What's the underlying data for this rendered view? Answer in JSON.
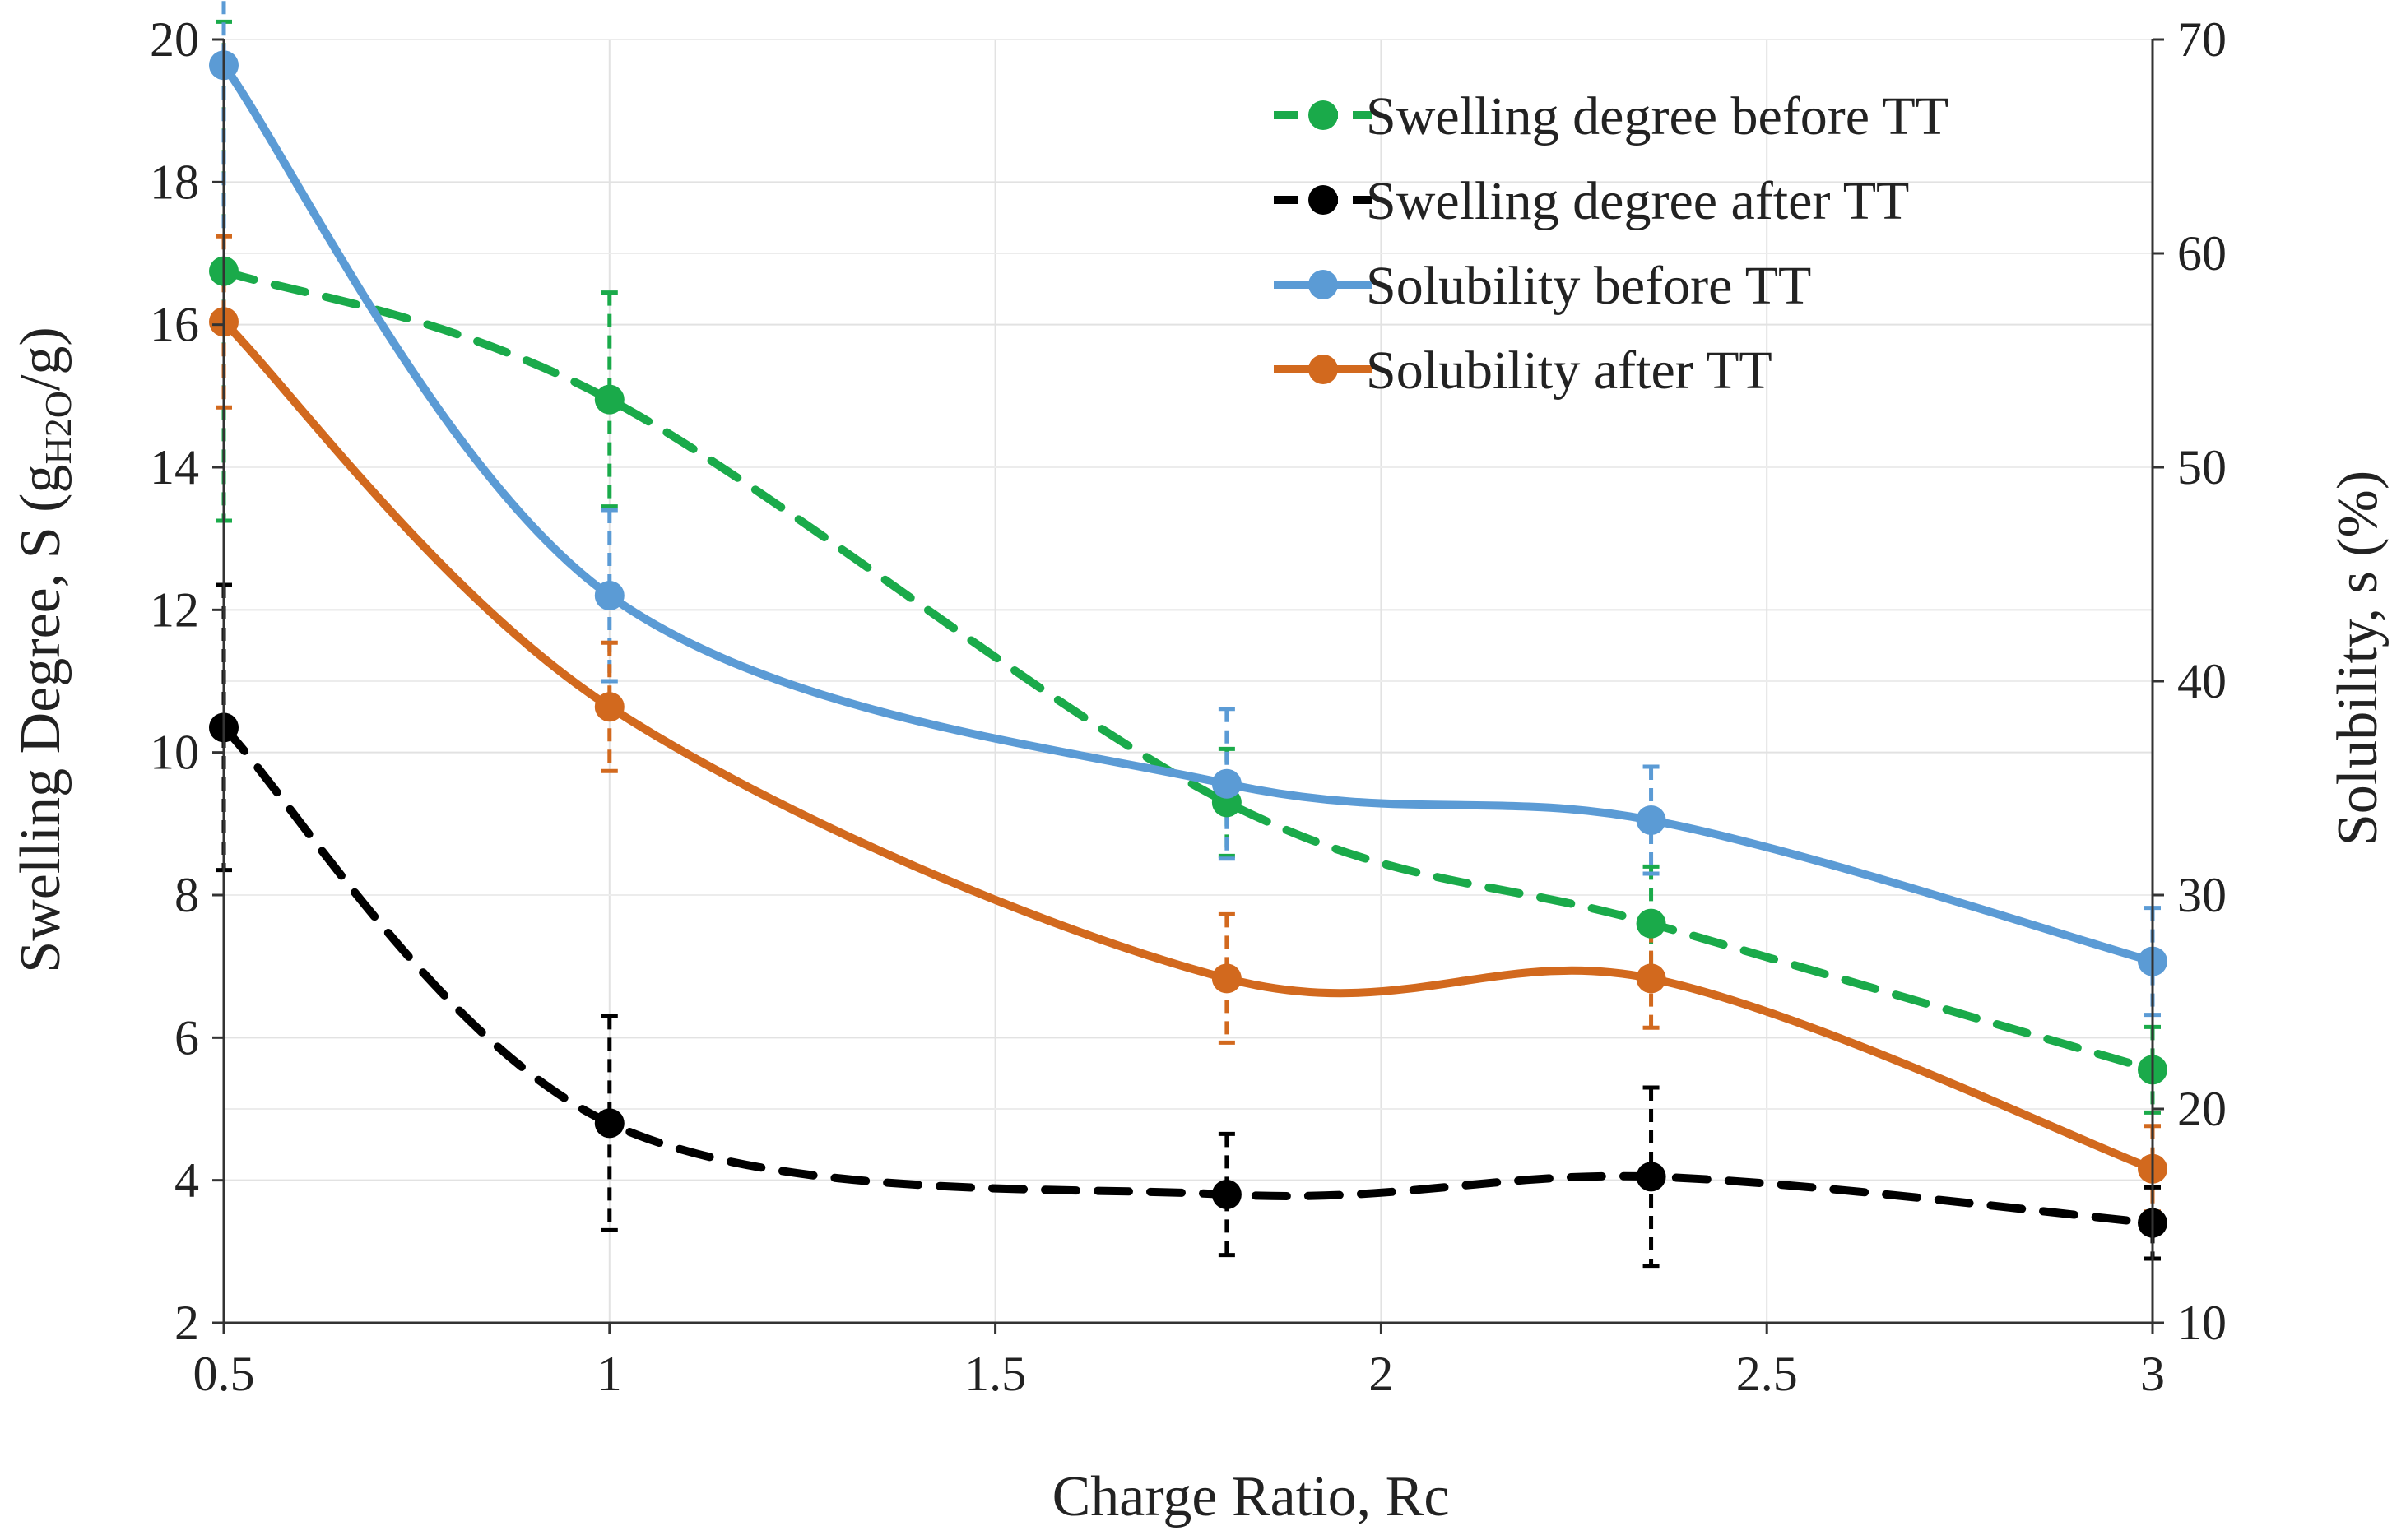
{
  "chart_data": {
    "type": "line",
    "xlabel": "Charge Ratio, Rc",
    "ylabel_left": {
      "main": "Swelling Degree, S (g",
      "sub": "H2O",
      "tail": "/g)"
    },
    "ylabel_right": "Solubility, s (%)",
    "xlim": [
      0.5,
      3
    ],
    "ylim_left": [
      2,
      20
    ],
    "ylim_right": [
      10,
      70
    ],
    "x_ticks": [
      0.5,
      1,
      1.5,
      2,
      2.5,
      3
    ],
    "x_tick_labels": [
      "0.5",
      "1",
      "1.5",
      "2",
      "2.5",
      "3"
    ],
    "y_left_ticks": [
      2,
      4,
      6,
      8,
      10,
      12,
      14,
      16,
      18,
      20
    ],
    "y_left_tick_labels": [
      "2",
      "4",
      "6",
      "8",
      "10",
      "12",
      "14",
      "16",
      "18",
      "20"
    ],
    "y_right_ticks": [
      10,
      20,
      30,
      40,
      50,
      60,
      70
    ],
    "y_right_tick_labels": [
      "10",
      "20",
      "30",
      "40",
      "50",
      "60",
      "70"
    ],
    "grid": true,
    "legend_position": "top-right",
    "series": [
      {
        "name": "Swelling degree before TT",
        "axis": "left",
        "color": "#1aaa4a",
        "dash": "dashed",
        "x": [
          0.5,
          1,
          1.8,
          2.35,
          3
        ],
        "y": [
          16.75,
          14.95,
          9.3,
          7.6,
          5.55
        ],
        "err": [
          3.5,
          1.5,
          0.75,
          0.8,
          0.6
        ]
      },
      {
        "name": "Swelling degree after TT",
        "axis": "left",
        "color": "#000000",
        "dash": "dashed",
        "x": [
          0.5,
          1,
          1.8,
          2.35,
          3
        ],
        "y": [
          10.35,
          4.8,
          3.8,
          4.05,
          3.4
        ],
        "err": [
          2.0,
          1.5,
          0.85,
          1.25,
          0.5
        ]
      },
      {
        "name": "Solubility before TT",
        "axis": "right",
        "color": "#5b9bd5",
        "dash": "solid",
        "x": [
          0.5,
          1,
          1.8,
          2.35,
          3
        ],
        "y": [
          68.8,
          44.0,
          35.2,
          33.5,
          26.9
        ],
        "err": [
          12.0,
          4.0,
          3.5,
          2.5,
          2.5
        ]
      },
      {
        "name": "Solubility after TT",
        "axis": "right",
        "color": "#d2691e",
        "dash": "solid",
        "x": [
          0.5,
          1,
          1.8,
          2.35,
          3
        ],
        "y": [
          56.8,
          38.8,
          26.1,
          26.1,
          17.2
        ],
        "err": [
          4.0,
          3.0,
          3.0,
          2.3,
          2.0
        ]
      }
    ]
  }
}
